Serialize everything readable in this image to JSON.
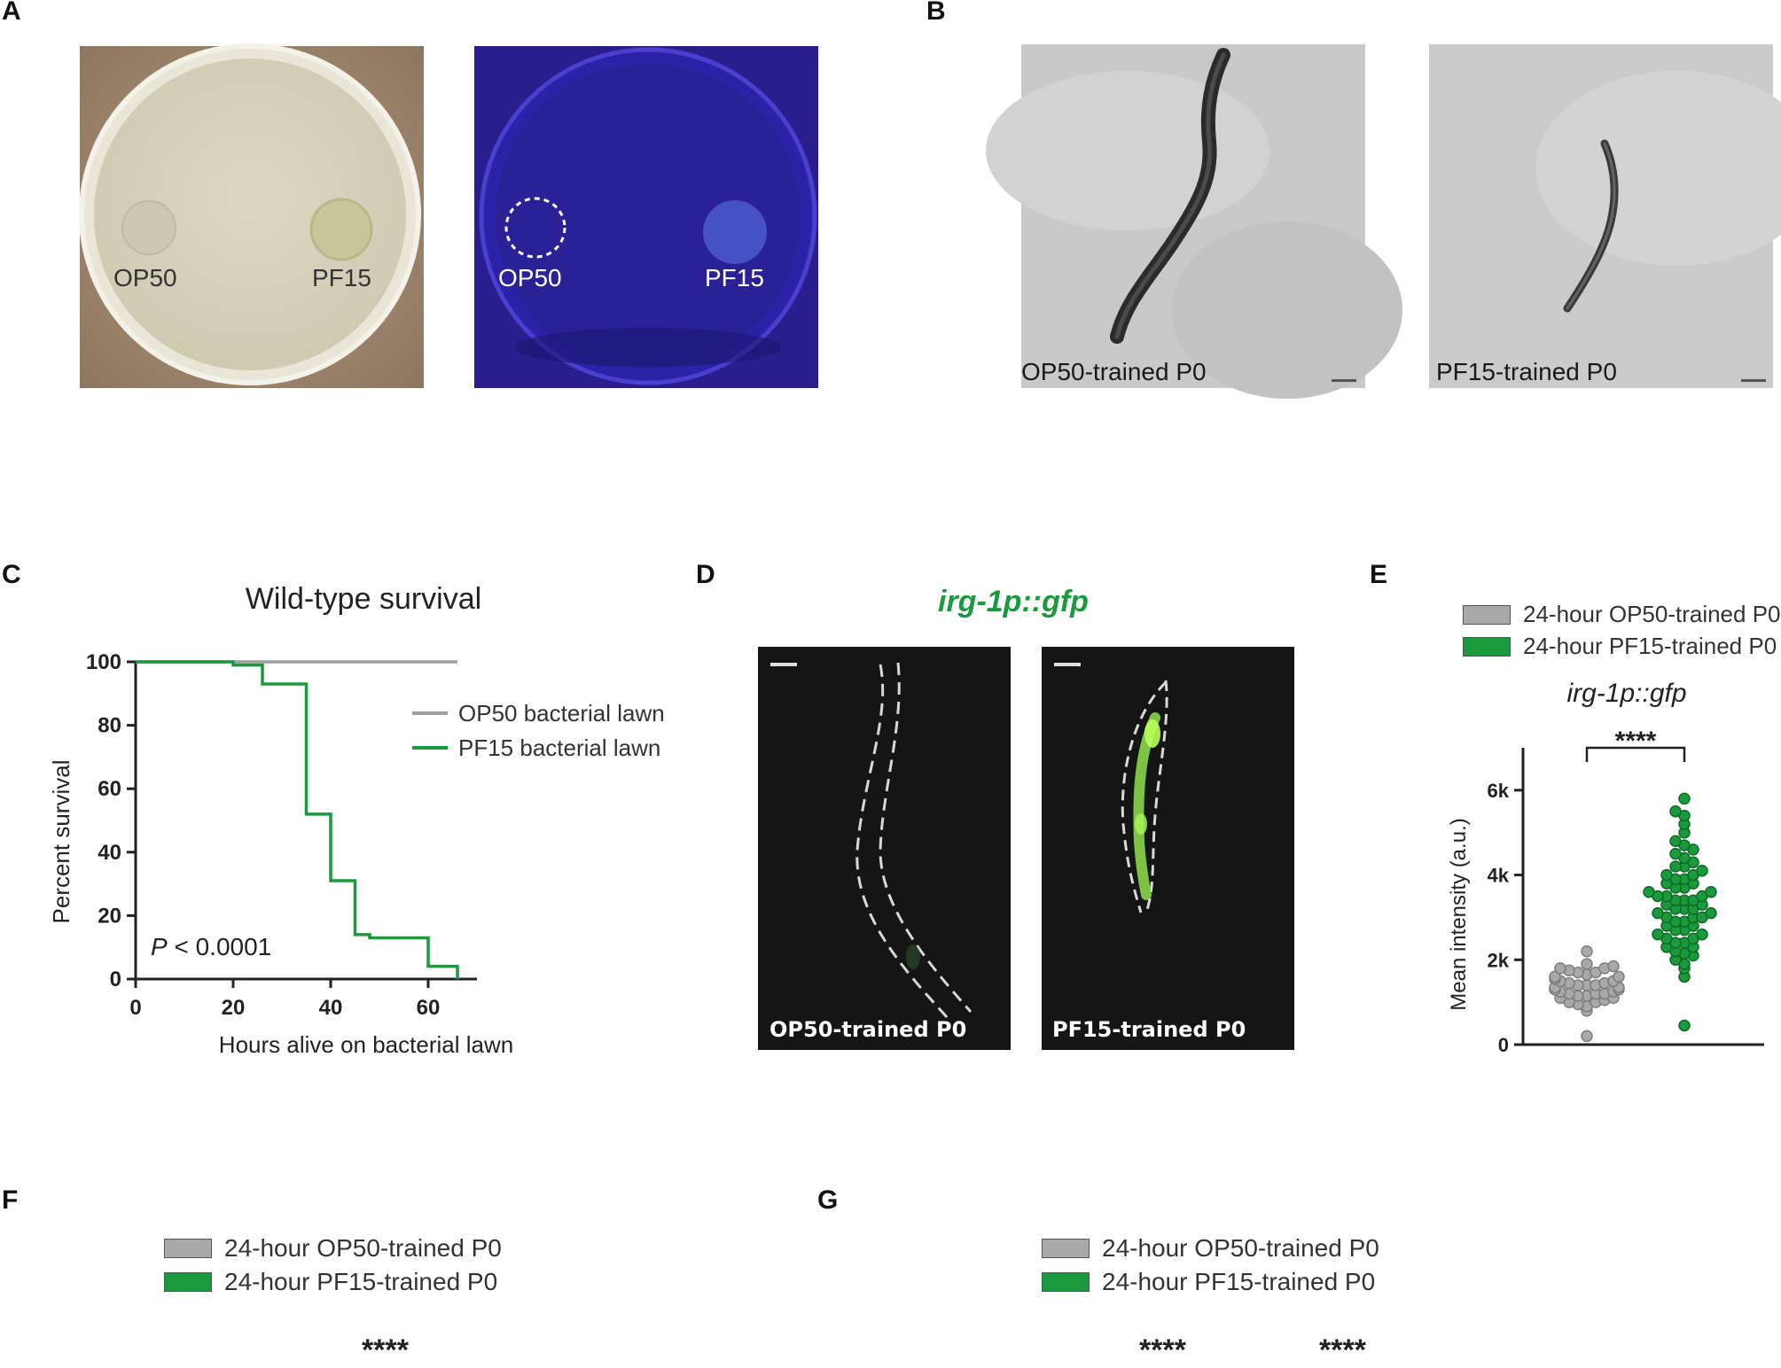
{
  "panels": {
    "A": {
      "letter": "A",
      "plate_left": {
        "label_1": "OP50",
        "label_2": "PF15"
      },
      "plate_right": {
        "label_1": "OP50",
        "label_2": "PF15"
      }
    },
    "B": {
      "letter": "B",
      "img_left_caption": "OP50-trained P0",
      "img_right_caption": "PF15-trained P0"
    },
    "C": {
      "letter": "C"
    },
    "D": {
      "letter": "D",
      "title": "irg-1p::gfp",
      "img_left_caption": "OP50-trained P0",
      "img_right_caption": "PF15-trained P0",
      "accent_color": "#1a9a3c"
    },
    "E": {
      "letter": "E",
      "legend": [
        "24-hour OP50-trained P0",
        "24-hour PF15-trained P0"
      ]
    },
    "F": {
      "letter": "F",
      "legend": [
        "24-hour OP50-trained P0",
        "24-hour PF15-trained P0"
      ],
      "significance": "****"
    },
    "G": {
      "letter": "G",
      "legend": [
        "24-hour OP50-trained P0",
        "24-hour PF15-trained P0"
      ],
      "significance_1": "****",
      "significance_2": "****"
    }
  },
  "chart_data": [
    {
      "type": "line",
      "panel": "C",
      "title": "Wild-type survival",
      "xlabel": "Hours alive on bacterial lawn",
      "ylabel": "Percent survival",
      "xlim": [
        0,
        70
      ],
      "ylim": [
        0,
        100
      ],
      "xticks": [
        0,
        20,
        40,
        60
      ],
      "yticks": [
        0,
        20,
        40,
        60,
        80,
        100
      ],
      "legend_position": "top-right",
      "annotation_p": "P",
      "annotation_rest": " < 0.0001",
      "series": [
        {
          "name": "OP50 bacterial lawn",
          "color": "#9e9e9e",
          "step": true,
          "x": [
            0,
            66
          ],
          "y": [
            100,
            100
          ]
        },
        {
          "name": "PF15 bacterial lawn",
          "color": "#1a9a3c",
          "step": true,
          "x": [
            0,
            20,
            26,
            35,
            40,
            45,
            48,
            60,
            66,
            66
          ],
          "y": [
            100,
            99,
            93,
            52,
            31,
            14,
            13,
            4,
            4,
            0
          ]
        }
      ]
    },
    {
      "type": "scatter",
      "panel": "E",
      "title": "irg-1p::gfp",
      "ylabel": "Mean intensity (a.u.)",
      "ylim": [
        0,
        7000
      ],
      "ytick_labels": [
        "0",
        "2k",
        "4k",
        "6k"
      ],
      "yticks": [
        0,
        2000,
        4000,
        6000
      ],
      "significance": "****",
      "series": [
        {
          "name": "24-hour OP50-trained P0",
          "color": "#a9a9a9",
          "values": [
            200,
            800,
            900,
            950,
            1000,
            1000,
            1050,
            1100,
            1100,
            1150,
            1150,
            1200,
            1200,
            1200,
            1250,
            1250,
            1300,
            1300,
            1300,
            1350,
            1350,
            1400,
            1400,
            1400,
            1450,
            1450,
            1500,
            1500,
            1550,
            1600,
            1600,
            1650,
            1700,
            1700,
            1750,
            1800,
            1800,
            1850,
            1900,
            2200
          ]
        },
        {
          "name": "24-hour PF15-trained P0",
          "color": "#1a9a3c",
          "values": [
            450,
            1600,
            1800,
            1900,
            2000,
            2100,
            2150,
            2200,
            2300,
            2300,
            2400,
            2400,
            2500,
            2500,
            2600,
            2600,
            2700,
            2700,
            2800,
            2800,
            2900,
            2900,
            3000,
            3000,
            3000,
            3100,
            3100,
            3200,
            3200,
            3200,
            3300,
            3300,
            3400,
            3400,
            3400,
            3500,
            3500,
            3500,
            3600,
            3600,
            3700,
            3700,
            3800,
            3800,
            3900,
            3900,
            4000,
            4000,
            4100,
            4200,
            4200,
            4300,
            4400,
            4500,
            4600,
            4700,
            4800,
            5000,
            5200,
            5400,
            5500,
            5800
          ]
        }
      ]
    }
  ]
}
